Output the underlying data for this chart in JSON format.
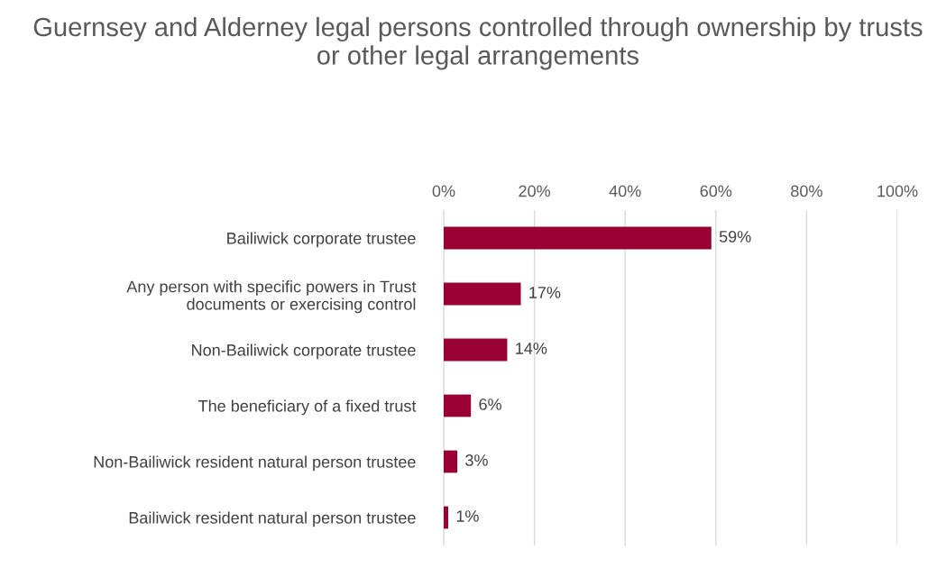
{
  "chart_data": {
    "type": "bar",
    "orientation": "horizontal",
    "title": "Guernsey and Alderney legal persons controlled through ownership by trusts or other legal arrangements",
    "categories": [
      "Bailiwick corporate trustee",
      "Any person with specific powers in Trust documents or exercising control",
      "Non-Bailiwick corporate trustee",
      "The beneficiary of a fixed trust",
      "Non-Bailiwick resident natural person trustee",
      "Bailiwick resident natural person trustee"
    ],
    "values": [
      59,
      17,
      14,
      6,
      3,
      1
    ],
    "value_labels": [
      "59%",
      "17%",
      "14%",
      "6%",
      "3%",
      "1%"
    ],
    "color": "#990033",
    "xlim": [
      0,
      100
    ],
    "xticks": [
      {
        "value": 0,
        "label": "0%"
      },
      {
        "value": 20,
        "label": "20%"
      },
      {
        "value": 40,
        "label": "40%"
      },
      {
        "value": 60,
        "label": "60%"
      },
      {
        "value": 80,
        "label": "80%"
      },
      {
        "value": 100,
        "label": "100%"
      }
    ],
    "grid": "x",
    "legend": false
  }
}
